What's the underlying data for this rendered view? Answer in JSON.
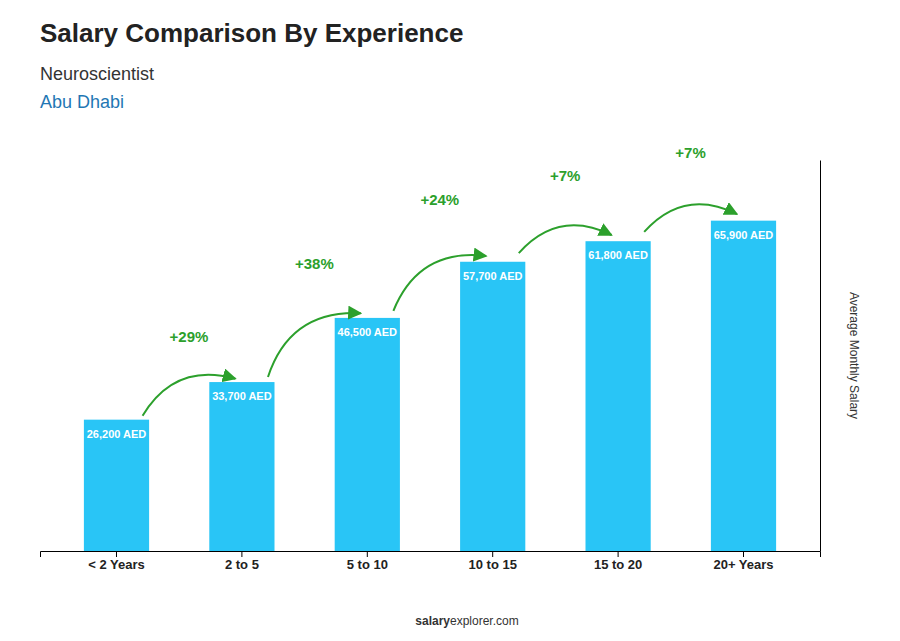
{
  "chart_data": {
    "type": "bar",
    "title": "Salary Comparison By Experience",
    "subtitle": "Neuroscientist",
    "annotations": [
      "Abu Dhabi",
      "salary",
      "explorer.com"
    ],
    "ylabel": "Average Monthly Salary",
    "categories": [
      "< 2 Years",
      "2 to 5",
      "5 to 10",
      "10 to 15",
      "15 to 20",
      "20+ Years"
    ],
    "values": [
      26200,
      33700,
      46500,
      57700,
      61800,
      65900
    ],
    "value_labels": [
      "26,200 AED",
      "33,700 AED",
      "46,500 AED",
      "57,700 AED",
      "61,800 AED",
      "65,900 AED"
    ],
    "pct_changes": [
      29,
      38,
      24,
      7,
      7
    ],
    "pct_change_labels": [
      "+29%",
      "+38%",
      "+24%",
      "+7%",
      "+7%"
    ],
    "color": "#29C5F6",
    "ylim": [
      0,
      78000
    ],
    "grid": false,
    "data_labels": true,
    "tick_labels": "x"
  }
}
